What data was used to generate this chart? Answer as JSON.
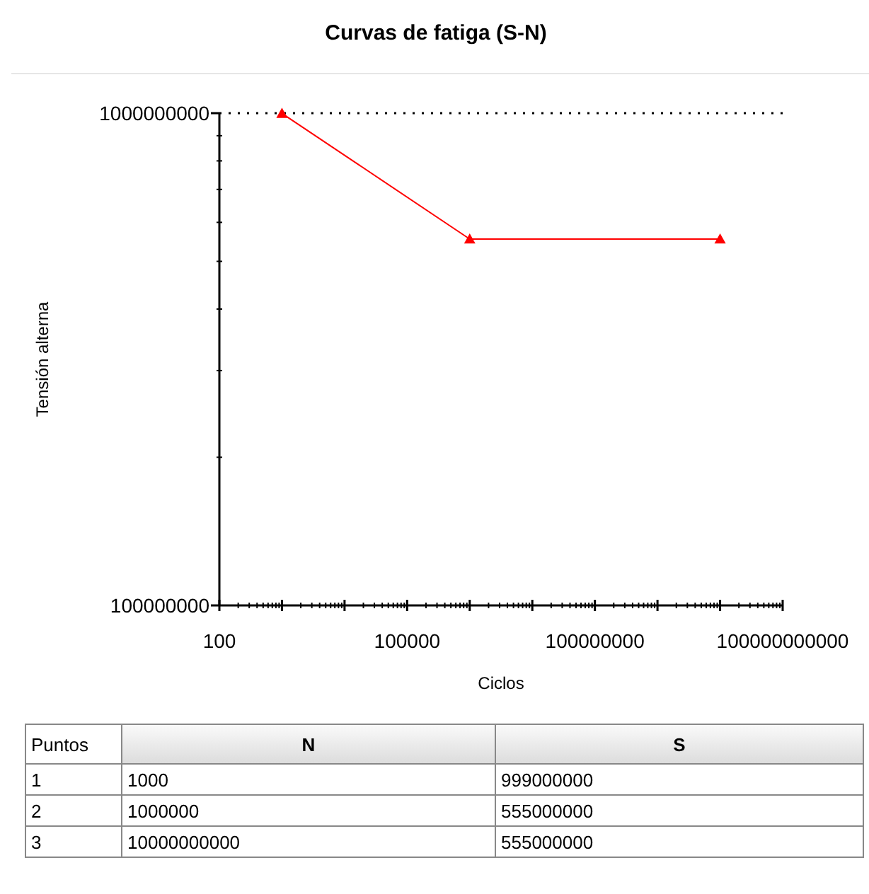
{
  "chart_data": {
    "type": "line",
    "title": "Curvas de fatiga (S-N)",
    "xlabel": "Ciclos",
    "ylabel": "Tensión alterna",
    "log": "xy",
    "marker": "triangle",
    "line_style": "solid",
    "ref_lines": [
      {
        "axis": "y",
        "value": 1000000000,
        "line_style": "dotted"
      }
    ],
    "x": [
      1000,
      1000000,
      10000000000
    ],
    "series": [
      {
        "color": "#ff0000",
        "values": [
          999000000,
          555000000,
          555000000
        ]
      }
    ],
    "xlim": [
      100,
      100000000000
    ],
    "xticks": [
      100,
      {
        "value": 1000,
        "label": null
      },
      {
        "value": 10000,
        "label": null
      },
      100000,
      {
        "value": 1000000,
        "label": null
      },
      {
        "value": 10000000,
        "label": null
      },
      100000000,
      {
        "value": 1000000000,
        "label": null
      },
      {
        "value": 10000000000,
        "label": null
      },
      100000000000
    ],
    "ylim": [
      100000000,
      1000000000
    ],
    "yticks": [
      100000000,
      1000000000
    ],
    "annotations": [
      "Puntos",
      "N",
      "S",
      "1",
      "1000",
      "999000000",
      "2",
      "1000000",
      "555000000",
      "3",
      "10000000000",
      "555000000"
    ]
  }
}
